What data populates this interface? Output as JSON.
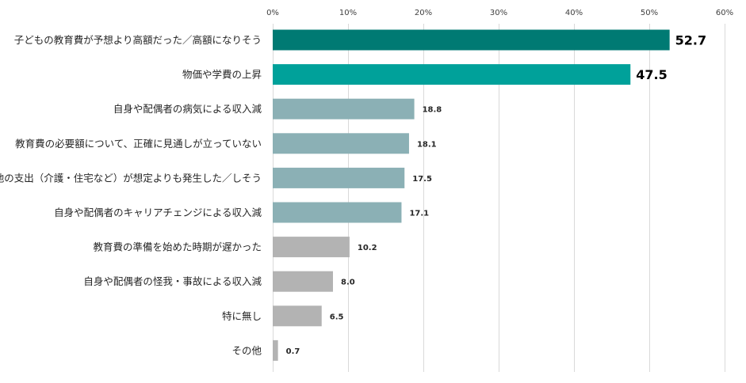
{
  "chart_data": {
    "type": "bar",
    "orientation": "horizontal",
    "categories": [
      "子どもの教育費が予想より高額だった／高額になりそう",
      "物価や学費の上昇",
      "自身や配偶者の病気による収入減",
      "教育費の必要額について、正確に見通しが立っていない",
      "他の支出（介護・住宅など）が想定よりも発生した／しそう",
      "自身や配偶者のキャリアチェンジによる収入減",
      "教育費の準備を始めた時期が遅かった",
      "自身や配偶者の怪我・事故による収入減",
      "特に無し",
      "その他"
    ],
    "values": [
      52.7,
      47.5,
      18.8,
      18.1,
      17.5,
      17.1,
      10.2,
      8.0,
      6.5,
      0.7
    ],
    "value_labels": [
      "52.7",
      "47.5",
      "18.8",
      "18.1",
      "17.5",
      "17.1",
      "10.2",
      "8.0",
      "6.5",
      "0.7"
    ],
    "bar_colors": [
      "#007a73",
      "#00a19a",
      "#8bb0b5",
      "#8bb0b5",
      "#8bb0b5",
      "#8bb0b5",
      "#b3b3b3",
      "#b3b3b3",
      "#b3b3b3",
      "#b3b3b3"
    ],
    "xlim": [
      0,
      60
    ],
    "xticks": [
      0,
      10,
      20,
      30,
      40,
      50,
      60
    ],
    "xtick_labels": [
      "0%",
      "10%",
      "20%",
      "30%",
      "40%",
      "50%",
      "60%"
    ],
    "xaxis_position": "top",
    "grid": true,
    "title": "",
    "xlabel": "",
    "ylabel": ""
  }
}
